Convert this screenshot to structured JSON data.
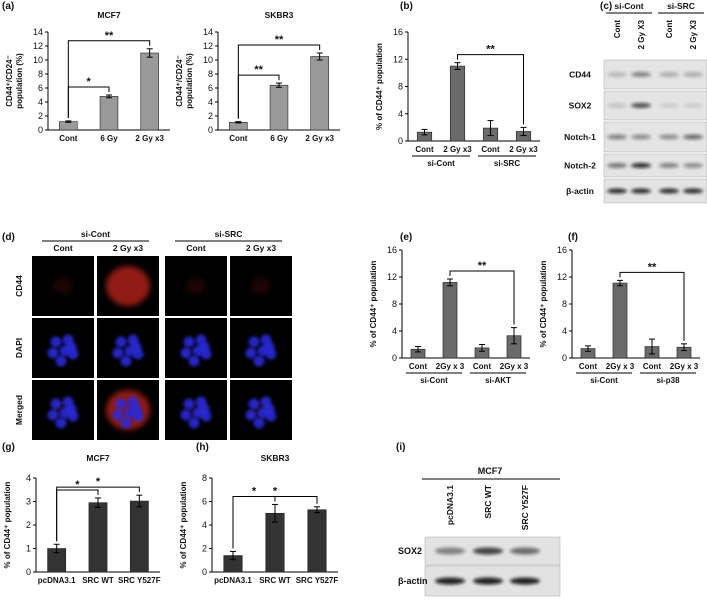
{
  "chart_data": [
    {
      "type": "bar",
      "panel": "(a)",
      "title": "MCF7",
      "ylabel": [
        "CD44⁺/CD24⁻",
        "population (%)"
      ],
      "categories": [
        "Cont",
        "6 Gy",
        "2 Gy x3"
      ],
      "values": [
        1.2,
        4.8,
        11.0
      ],
      "errors": [
        0.1,
        0.2,
        0.6
      ],
      "ylim": [
        0,
        14
      ],
      "yticks": [
        0,
        2,
        4,
        6,
        8,
        10,
        12,
        14
      ],
      "color": "#9a9a9a",
      "annotations": [
        "*",
        "**"
      ]
    },
    {
      "type": "bar",
      "title": "SKBR3",
      "ylabel": [
        "CD44⁺/CD24⁻",
        "population (%)"
      ],
      "categories": [
        "Cont",
        "6 Gy",
        "2 Gy x3"
      ],
      "values": [
        1.1,
        6.4,
        10.5
      ],
      "errors": [
        0.1,
        0.3,
        0.5
      ],
      "ylim": [
        0,
        14
      ],
      "yticks": [
        0,
        2,
        4,
        6,
        8,
        10,
        12,
        14
      ],
      "color": "#9a9a9a",
      "annotations": [
        "**",
        "**"
      ]
    },
    {
      "type": "bar",
      "panel": "(b)",
      "ylabel": [
        "% of CD44⁺ population"
      ],
      "categories": [
        "Cont",
        "2 Gy x3",
        "Cont",
        "2 Gy x3"
      ],
      "groups": [
        "si-Cont",
        "si-SRC"
      ],
      "values": [
        1.3,
        11.0,
        1.9,
        1.4
      ],
      "errors": [
        0.4,
        0.5,
        1.1,
        0.6
      ],
      "ylim": [
        0,
        16
      ],
      "yticks": [
        0,
        4,
        8,
        12,
        16
      ],
      "color": "#6a6a6a",
      "annotations": [
        "**"
      ]
    },
    {
      "type": "bar",
      "panel": "(e)",
      "ylabel": [
        "% of CD44⁺ population"
      ],
      "categories": [
        "Cont",
        "2Gy x 3",
        "Cont",
        "2Gy x 3"
      ],
      "groups": [
        "si-Cont",
        "si-AKT"
      ],
      "values": [
        1.3,
        11.2,
        1.5,
        3.3
      ],
      "errors": [
        0.4,
        0.5,
        0.5,
        1.2
      ],
      "ylim": [
        0,
        16
      ],
      "yticks": [
        0,
        4,
        8,
        12,
        16
      ],
      "color": "#6a6a6a",
      "annotations": [
        "**"
      ]
    },
    {
      "type": "bar",
      "panel": "(f)",
      "ylabel": [
        "% of CD44⁺ population"
      ],
      "categories": [
        "Cont",
        "2Gy x 3",
        "Cont",
        "2Gy x 3"
      ],
      "groups": [
        "si-Cont",
        "si-p38"
      ],
      "values": [
        1.4,
        11.1,
        1.7,
        1.6
      ],
      "errors": [
        0.4,
        0.4,
        1.1,
        0.5
      ],
      "ylim": [
        0,
        16
      ],
      "yticks": [
        0,
        4,
        8,
        12,
        16
      ],
      "color": "#6a6a6a",
      "annotations": [
        "**"
      ]
    },
    {
      "type": "bar",
      "panel": "(g)",
      "title": "MCF7",
      "ylabel": [
        "% of CD44⁺ population"
      ],
      "categories": [
        "pcDNA3.1",
        "SRC WT",
        "SRC Y527F"
      ],
      "values": [
        1.0,
        2.95,
        3.02
      ],
      "errors": [
        0.18,
        0.2,
        0.25
      ],
      "ylim": [
        0,
        4
      ],
      "yticks": [
        0,
        1,
        2,
        3,
        4
      ],
      "color": "#333333",
      "annotations": [
        "*",
        "*"
      ]
    },
    {
      "type": "bar",
      "panel": "(h)",
      "title": "SKBR3",
      "ylabel": [
        "% of CD44⁺ population"
      ],
      "categories": [
        "pcDNA3.1",
        "SRC WT",
        "SRC Y527F"
      ],
      "values": [
        1.4,
        5.0,
        5.3
      ],
      "errors": [
        0.35,
        0.75,
        0.25
      ],
      "ylim": [
        0,
        8
      ],
      "yticks": [
        0,
        2,
        4,
        6,
        8
      ],
      "color": "#333333",
      "annotations": [
        "*",
        "*"
      ]
    }
  ],
  "blot_c": {
    "panel": "(c)",
    "groups": [
      "si-Cont",
      "si-SRC"
    ],
    "lanes": [
      "Cont",
      "2 Gy X3",
      "Cont",
      "2 Gy X3"
    ],
    "rows": [
      "CD44",
      "SOX2",
      "Notch-1",
      "Notch-2",
      "β-actin"
    ]
  },
  "images_d": {
    "panel": "(d)",
    "groups": [
      "si-Cont",
      "si-SRC"
    ],
    "columns": [
      "Cont",
      "2 Gy x3",
      "Cont",
      "2 Gy x3"
    ],
    "rows": [
      "CD44",
      "DAPI",
      "Merged"
    ]
  },
  "blot_i": {
    "panel": "(i)",
    "title": "MCF7",
    "lanes": [
      "pcDNA3.1",
      "SRC WT",
      "SRC Y527F"
    ],
    "rows": [
      "SOX2",
      "β-actin"
    ]
  }
}
